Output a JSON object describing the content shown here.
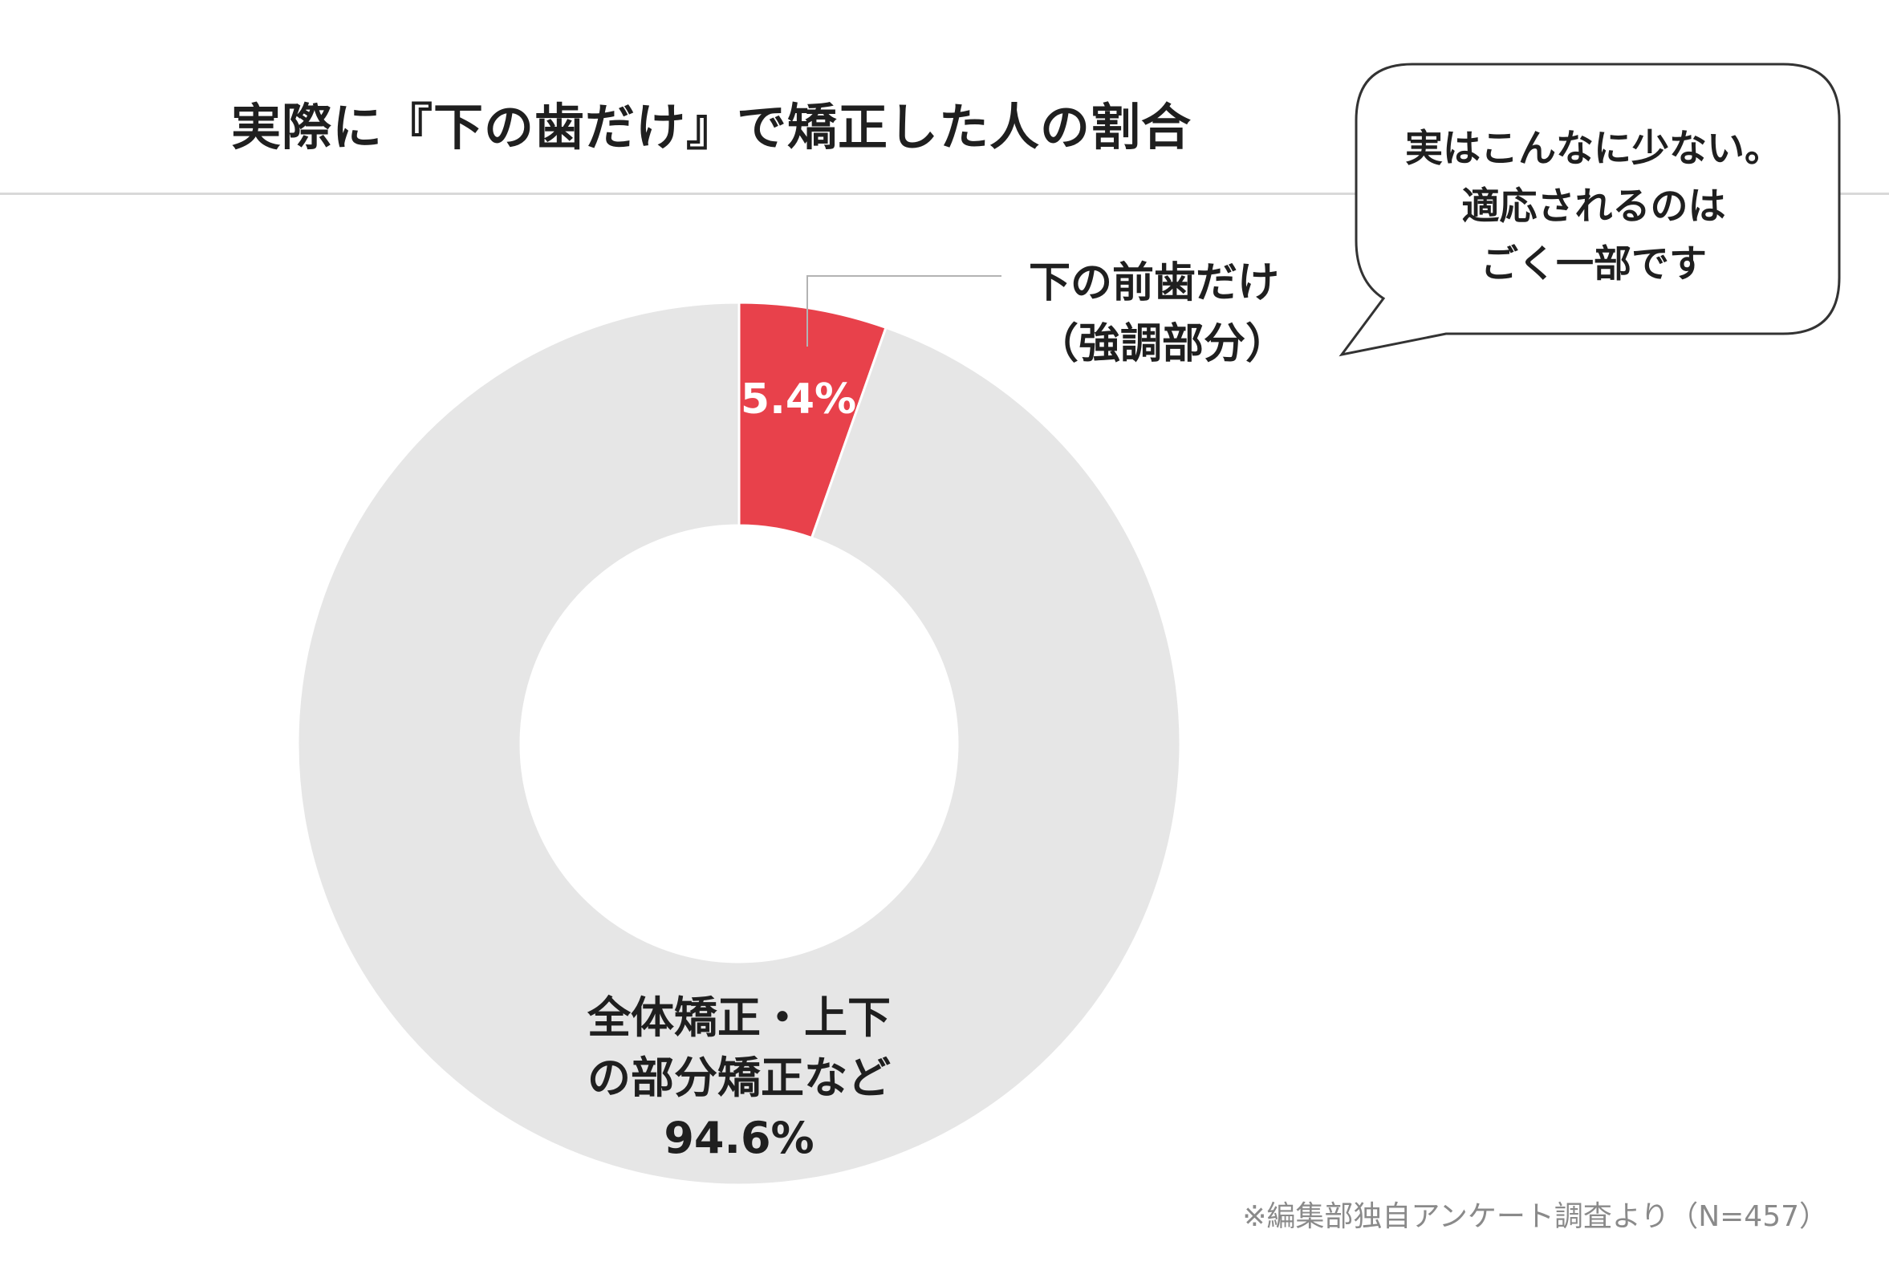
{
  "title": "実際に『下の歯だけ』で矯正した人の割合",
  "speech_bubble": {
    "lines": [
      "実はこんなに少ない。",
      "適応されるのは",
      "ごく一部です"
    ]
  },
  "footnote": "※編集部独自アンケート調査より（N=457）",
  "colors": {
    "highlight": "#e8414b",
    "rest": "#e6e6e6",
    "text": "#1f1f1f"
  },
  "chart_data": {
    "type": "pie",
    "donut": true,
    "title": "実際に『下の歯だけ』で矯正した人の割合",
    "slices": [
      {
        "label_lines": [
          "下の前歯だけ",
          "（強調部分）"
        ],
        "value": 5.4,
        "value_label": "5.4%",
        "color": "#e8414b"
      },
      {
        "label_lines": [
          "全体矯正・上下",
          "の部分矯正など"
        ],
        "value": 94.6,
        "value_label": "94.6%",
        "color": "#e6e6e6"
      }
    ],
    "legend": "none"
  }
}
